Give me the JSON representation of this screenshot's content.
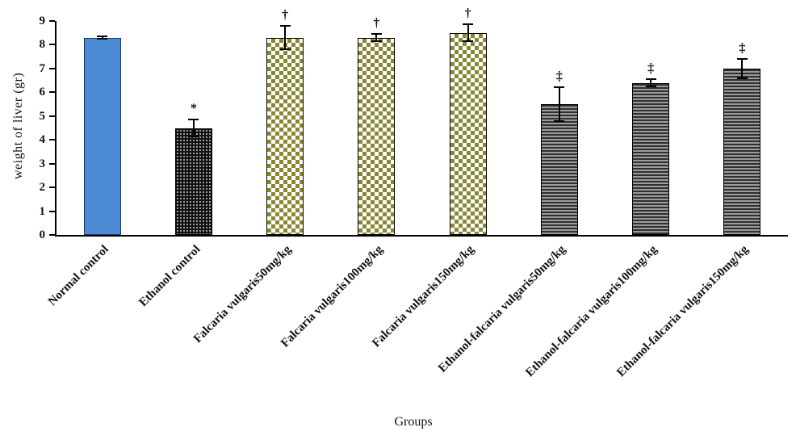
{
  "chart_data": {
    "type": "bar",
    "title": "",
    "xlabel": "Groups",
    "ylabel": "weight of liver (gr)",
    "ylim": [
      0,
      9
    ],
    "yticks": [
      0,
      1,
      2,
      3,
      4,
      5,
      6,
      7,
      8,
      9
    ],
    "grid": false,
    "legend": null,
    "categories": [
      "Normal control",
      "Ethanol control",
      "Falcaria vulgaris50mg/kg",
      "Falcaria vulgaris100mg/kg",
      "Falcaria vulgaris150mg/kg",
      "Ethanol-falcaria vulgaris50mg/kg",
      "Ethanol-falcaria vulgaris100mg/kg",
      "Ethanol-falcaria vulgaris150mg/kg"
    ],
    "values": [
      8.3,
      4.5,
      8.3,
      8.3,
      8.5,
      5.5,
      6.4,
      7.0
    ],
    "errors": [
      0.05,
      0.35,
      0.5,
      0.15,
      0.35,
      0.7,
      0.15,
      0.4
    ],
    "annotations": [
      "",
      "*",
      "†",
      "†",
      "†",
      "‡",
      "‡",
      "‡"
    ],
    "bar_styles": [
      "solid-blue",
      "dotted-black",
      "checker-olive",
      "checker-olive",
      "checker-olive",
      "hstripe-gray",
      "hstripe-gray",
      "hstripe-gray"
    ],
    "colors": {
      "blue_fill": "#4d8bd6",
      "blue_border": "#1b3a63",
      "dotted_fill": "#101010",
      "checker_olive": "#8a8733",
      "stripe_dark": "#303030",
      "stripe_light": "#9b9b9b",
      "axis": "#000000"
    }
  }
}
